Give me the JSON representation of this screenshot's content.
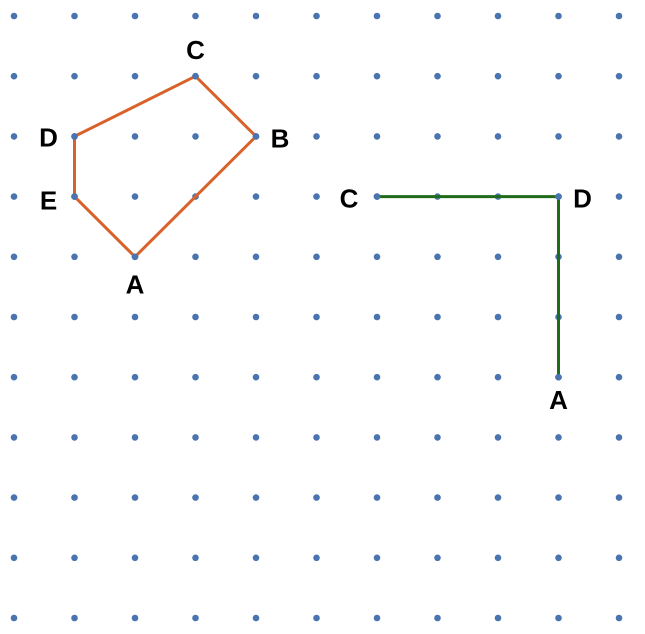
{
  "colors": {
    "background": "#ffffff",
    "dot": "#4a74b0",
    "shape_left": "#d9622b",
    "shape_right": "#1f6b1a",
    "label": "#000000"
  },
  "grid": {
    "columns": 11,
    "rows": 11
  },
  "shapes": [
    {
      "name": "pentagon",
      "color_key": "shape_left",
      "closed": true,
      "vertices": [
        {
          "label": "A",
          "col": 2,
          "row": 4
        },
        {
          "label": "B",
          "col": 4,
          "row": 2
        },
        {
          "label": "C",
          "col": 3,
          "row": 1
        },
        {
          "label": "D",
          "col": 1,
          "row": 2
        },
        {
          "label": "E",
          "col": 1,
          "row": 3
        }
      ]
    },
    {
      "name": "right-angle",
      "color_key": "shape_right",
      "closed": false,
      "vertices": [
        {
          "label": "C",
          "col": 6,
          "row": 3
        },
        {
          "label": "D",
          "col": 9,
          "row": 3
        },
        {
          "label": "A",
          "col": 9,
          "row": 6
        }
      ]
    }
  ]
}
